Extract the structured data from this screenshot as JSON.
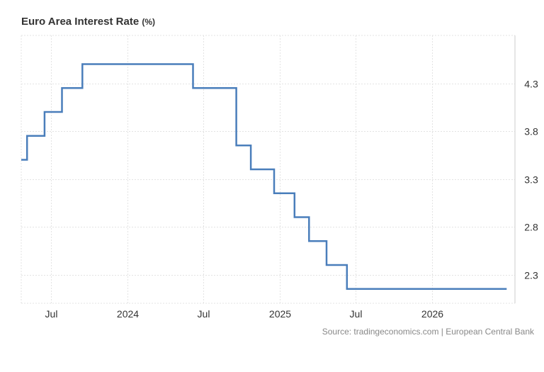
{
  "title": {
    "main": "Euro Area Interest Rate",
    "unit": "(%)"
  },
  "source": "Source: tradingeconomics.com | European Central Bank",
  "colors": {
    "line": "#4a7ebb",
    "grid": "#e3e3e3",
    "axis_text": "#333333",
    "source_text": "#888888"
  },
  "chart_data": {
    "type": "line",
    "step": true,
    "title": "Euro Area Interest Rate (%)",
    "xlabel": "",
    "ylabel": "",
    "x_range": [
      "2023-04-20",
      "2026-07-20"
    ],
    "ylim": [
      2.0,
      4.8
    ],
    "y_ticks": [
      2.3,
      2.8,
      3.3,
      3.8,
      4.3
    ],
    "y_axis_side": "right",
    "x_ticks": [
      {
        "date": "2023-07-01",
        "label": "Jul"
      },
      {
        "date": "2024-01-01",
        "label": "2024"
      },
      {
        "date": "2024-07-01",
        "label": "Jul"
      },
      {
        "date": "2025-01-01",
        "label": "2025"
      },
      {
        "date": "2025-07-01",
        "label": "Jul"
      },
      {
        "date": "2026-01-01",
        "label": "2026"
      }
    ],
    "grid": true,
    "series": [
      {
        "points": [
          {
            "date": "2023-04-20",
            "value": 3.5
          },
          {
            "date": "2023-05-04",
            "value": 3.75
          },
          {
            "date": "2023-06-15",
            "value": 4.0
          },
          {
            "date": "2023-07-27",
            "value": 4.25
          },
          {
            "date": "2023-09-14",
            "value": 4.5
          },
          {
            "date": "2024-06-06",
            "value": 4.25
          },
          {
            "date": "2024-09-18",
            "value": 3.65
          },
          {
            "date": "2024-10-23",
            "value": 3.4
          },
          {
            "date": "2024-12-18",
            "value": 3.15
          },
          {
            "date": "2025-02-05",
            "value": 2.9
          },
          {
            "date": "2025-03-12",
            "value": 2.65
          },
          {
            "date": "2025-04-23",
            "value": 2.4
          },
          {
            "date": "2025-06-11",
            "value": 2.15
          },
          {
            "date": "2026-06-30",
            "value": 2.15
          }
        ]
      }
    ]
  }
}
